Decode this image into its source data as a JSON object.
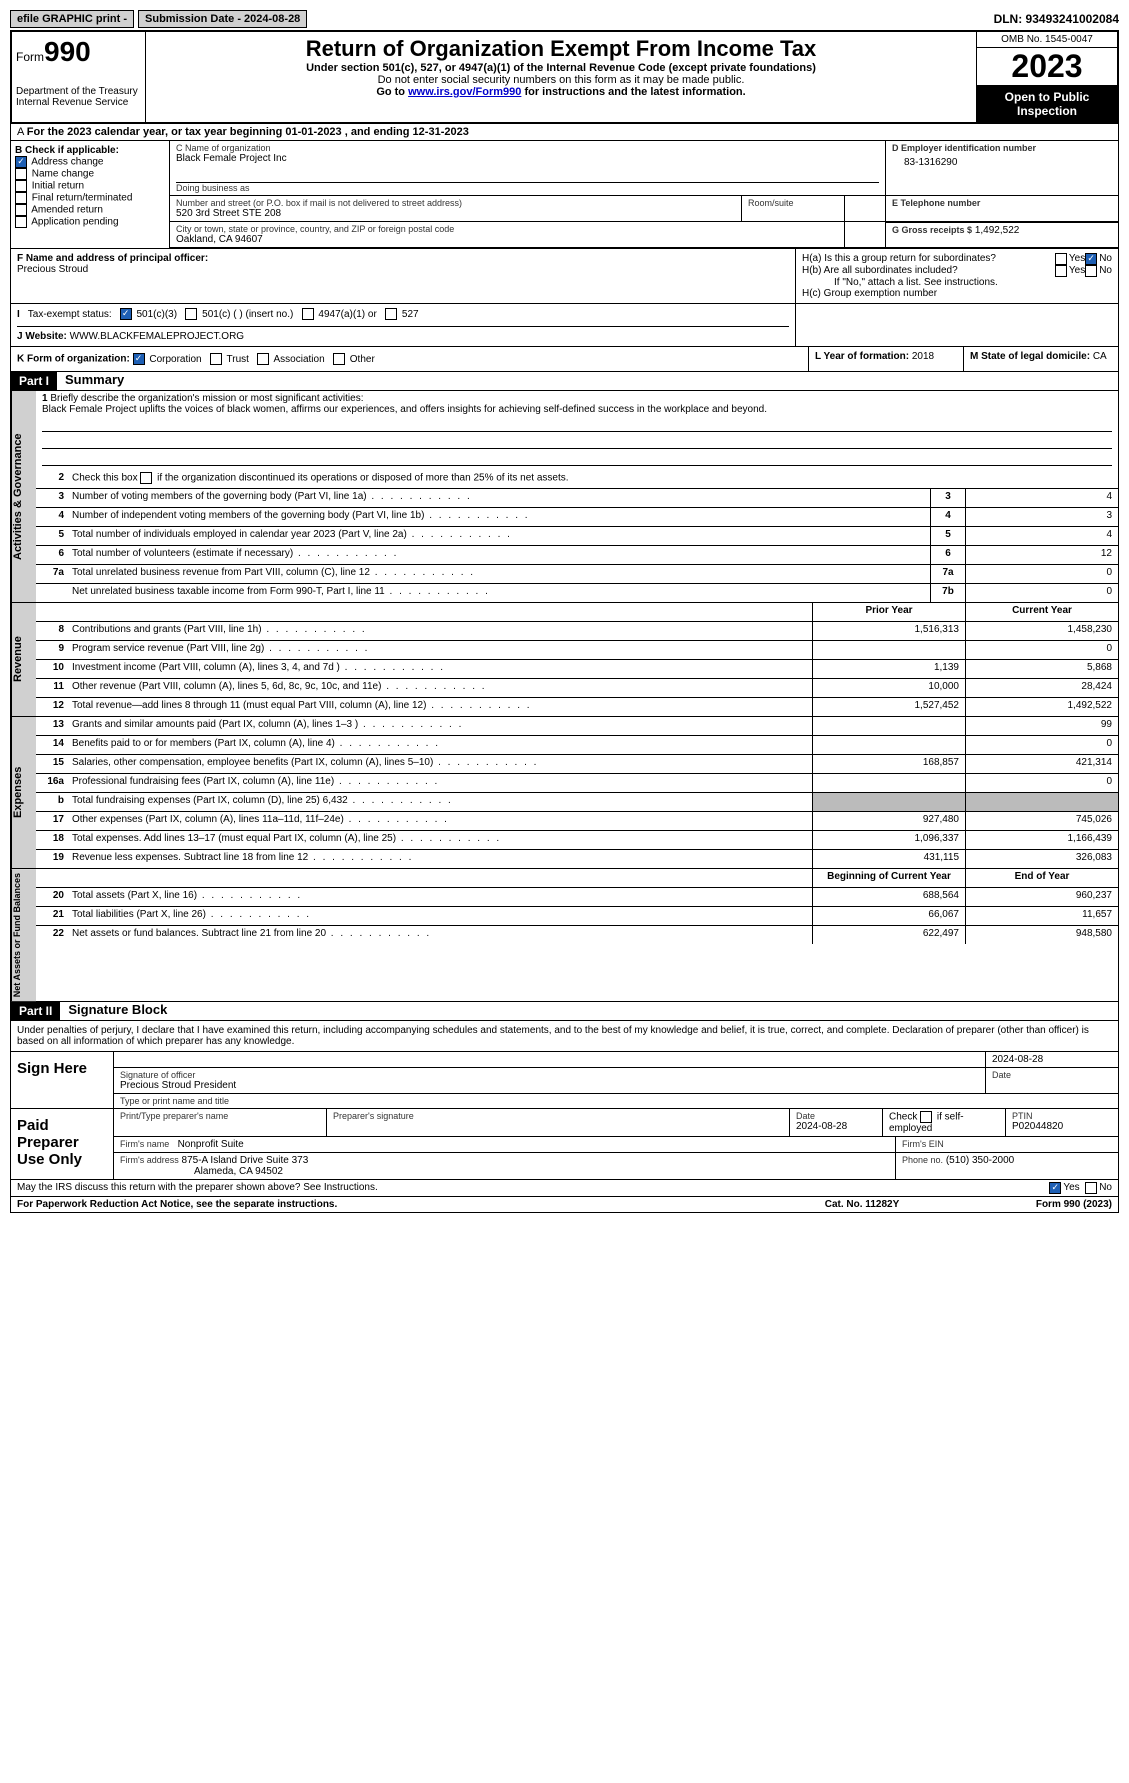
{
  "topbar": {
    "efile": "efile GRAPHIC print -",
    "submission": "Submission Date - 2024-08-28",
    "dln": "DLN: 93493241002084"
  },
  "header": {
    "form_prefix": "Form",
    "form_num": "990",
    "dept": "Department of the Treasury",
    "irs": "Internal Revenue Service",
    "title": "Return of Organization Exempt From Income Tax",
    "sub1": "Under section 501(c), 527, or 4947(a)(1) of the Internal Revenue Code (except private foundations)",
    "sub2": "Do not enter social security numbers on this form as it may be made public.",
    "sub3_pre": "Go to ",
    "sub3_link": "www.irs.gov/Form990",
    "sub3_post": " for instructions and the latest information.",
    "omb": "OMB No. 1545-0047",
    "year": "2023",
    "inspect": "Open to Public Inspection"
  },
  "rowA": "For the 2023 calendar year, or tax year beginning 01-01-2023   , and ending 12-31-2023",
  "colB": {
    "hdr": "B Check if applicable:",
    "items": [
      "Address change",
      "Name change",
      "Initial return",
      "Final return/terminated",
      "Amended return",
      "Application pending"
    ],
    "checked": [
      true,
      false,
      false,
      false,
      false,
      false
    ]
  },
  "colC": {
    "name_lbl": "C Name of organization",
    "name": "Black Female Project Inc",
    "dba_lbl": "Doing business as",
    "dba": "",
    "street_lbl": "Number and street (or P.O. box if mail is not delivered to street address)",
    "street": "520 3rd Street STE 208",
    "room_lbl": "Room/suite",
    "city_lbl": "City or town, state or province, country, and ZIP or foreign postal code",
    "city": "Oakland, CA  94607"
  },
  "colD": {
    "ein_lbl": "D Employer identification number",
    "ein": "83-1316290",
    "tel_lbl": "E Telephone number",
    "tel": "",
    "gross_lbl": "G Gross receipts $",
    "gross": "1,492,522"
  },
  "secF": {
    "lbl": "F  Name and address of principal officer:",
    "name": "Precious Stroud"
  },
  "secH": {
    "ha": "H(a)  Is this a group return for subordinates?",
    "ha_no": true,
    "hb": "H(b)  Are all subordinates included?",
    "hb_note": "If \"No,\" attach a list. See instructions.",
    "hc": "H(c)  Group exemption number"
  },
  "secI": {
    "lbl": "Tax-exempt status:",
    "opts": [
      "501(c)(3)",
      "501(c) (  ) (insert no.)",
      "4947(a)(1) or",
      "527"
    ],
    "checked": 0
  },
  "secJ": {
    "lbl": "Website:",
    "val": "WWW.BLACKFEMALEPROJECT.ORG"
  },
  "secK": {
    "lbl": "K Form of organization:",
    "opts": [
      "Corporation",
      "Trust",
      "Association",
      "Other"
    ],
    "checked": 0
  },
  "secL": {
    "lbl": "L Year of formation:",
    "val": "2018"
  },
  "secM": {
    "lbl": "M State of legal domicile:",
    "val": "CA"
  },
  "part1": {
    "num": "Part I",
    "title": "Summary"
  },
  "summary": {
    "q1": "Briefly describe the organization's mission or most significant activities:",
    "mission": "Black Female Project uplifts the voices of black women, affirms our experiences, and offers insights for achieving self-defined success in the workplace and beyond.",
    "q2": "Check this box       if the organization discontinued its operations or disposed of more than 25% of its net assets.",
    "lines": [
      {
        "n": "3",
        "t": "Number of voting members of the governing body (Part VI, line 1a)",
        "box": "3",
        "v": "4"
      },
      {
        "n": "4",
        "t": "Number of independent voting members of the governing body (Part VI, line 1b)",
        "box": "4",
        "v": "3"
      },
      {
        "n": "5",
        "t": "Total number of individuals employed in calendar year 2023 (Part V, line 2a)",
        "box": "5",
        "v": "4"
      },
      {
        "n": "6",
        "t": "Total number of volunteers (estimate if necessary)",
        "box": "6",
        "v": "12"
      },
      {
        "n": "7a",
        "t": "Total unrelated business revenue from Part VIII, column (C), line 12",
        "box": "7a",
        "v": "0"
      },
      {
        "n": "",
        "t": "Net unrelated business taxable income from Form 990-T, Part I, line 11",
        "box": "7b",
        "v": "0"
      }
    ]
  },
  "revenue": {
    "hdr_prior": "Prior Year",
    "hdr_curr": "Current Year",
    "rows": [
      {
        "n": "8",
        "t": "Contributions and grants (Part VIII, line 1h)",
        "p": "1,516,313",
        "c": "1,458,230"
      },
      {
        "n": "9",
        "t": "Program service revenue (Part VIII, line 2g)",
        "p": "",
        "c": "0"
      },
      {
        "n": "10",
        "t": "Investment income (Part VIII, column (A), lines 3, 4, and 7d )",
        "p": "1,139",
        "c": "5,868"
      },
      {
        "n": "11",
        "t": "Other revenue (Part VIII, column (A), lines 5, 6d, 8c, 9c, 10c, and 11e)",
        "p": "10,000",
        "c": "28,424"
      },
      {
        "n": "12",
        "t": "Total revenue—add lines 8 through 11 (must equal Part VIII, column (A), line 12)",
        "p": "1,527,452",
        "c": "1,492,522"
      }
    ]
  },
  "expenses": {
    "rows": [
      {
        "n": "13",
        "t": "Grants and similar amounts paid (Part IX, column (A), lines 1–3 )",
        "p": "",
        "c": "99"
      },
      {
        "n": "14",
        "t": "Benefits paid to or for members (Part IX, column (A), line 4)",
        "p": "",
        "c": "0"
      },
      {
        "n": "15",
        "t": "Salaries, other compensation, employee benefits (Part IX, column (A), lines 5–10)",
        "p": "168,857",
        "c": "421,314"
      },
      {
        "n": "16a",
        "t": "Professional fundraising fees (Part IX, column (A), line 11e)",
        "p": "",
        "c": "0"
      },
      {
        "n": "b",
        "t": "Total fundraising expenses (Part IX, column (D), line 25) 6,432",
        "p": "shade",
        "c": "shade"
      },
      {
        "n": "17",
        "t": "Other expenses (Part IX, column (A), lines 11a–11d, 11f–24e)",
        "p": "927,480",
        "c": "745,026"
      },
      {
        "n": "18",
        "t": "Total expenses. Add lines 13–17 (must equal Part IX, column (A), line 25)",
        "p": "1,096,337",
        "c": "1,166,439"
      },
      {
        "n": "19",
        "t": "Revenue less expenses. Subtract line 18 from line 12",
        "p": "431,115",
        "c": "326,083"
      }
    ]
  },
  "netassets": {
    "hdr_beg": "Beginning of Current Year",
    "hdr_end": "End of Year",
    "rows": [
      {
        "n": "20",
        "t": "Total assets (Part X, line 16)",
        "p": "688,564",
        "c": "960,237"
      },
      {
        "n": "21",
        "t": "Total liabilities (Part X, line 26)",
        "p": "66,067",
        "c": "11,657"
      },
      {
        "n": "22",
        "t": "Net assets or fund balances. Subtract line 21 from line 20",
        "p": "622,497",
        "c": "948,580"
      }
    ]
  },
  "part2": {
    "num": "Part II",
    "title": "Signature Block"
  },
  "sig": {
    "decl": "Under penalties of perjury, I declare that I have examined this return, including accompanying schedules and statements, and to the best of my knowledge and belief, it is true, correct, and complete. Declaration of preparer (other than officer) is based on all information of which preparer has any knowledge.",
    "sign_here": "Sign Here",
    "date": "2024-08-28",
    "sig_officer_lbl": "Signature of officer",
    "officer": "Precious Stroud  President",
    "type_lbl": "Type or print name and title",
    "paid": "Paid Preparer Use Only",
    "prep_name_lbl": "Print/Type preparer's name",
    "prep_sig_lbl": "Preparer's signature",
    "date2": "Date",
    "date2_val": "2024-08-28",
    "check_lbl": "Check        if self-employed",
    "ptin_lbl": "PTIN",
    "ptin": "P02044820",
    "firm_name_lbl": "Firm's name",
    "firm_name": "Nonprofit Suite",
    "firm_ein_lbl": "Firm's EIN",
    "firm_addr_lbl": "Firm's address",
    "firm_addr1": "875-A Island Drive Suite 373",
    "firm_addr2": "Alameda, CA  94502",
    "phone_lbl": "Phone no.",
    "phone": "(510) 350-2000",
    "discuss": "May the IRS discuss this return with the preparer shown above? See Instructions.",
    "discuss_yes": true
  },
  "footer": {
    "left": "For Paperwork Reduction Act Notice, see the separate instructions.",
    "mid": "Cat. No. 11282Y",
    "right": "Form 990 (2023)"
  }
}
